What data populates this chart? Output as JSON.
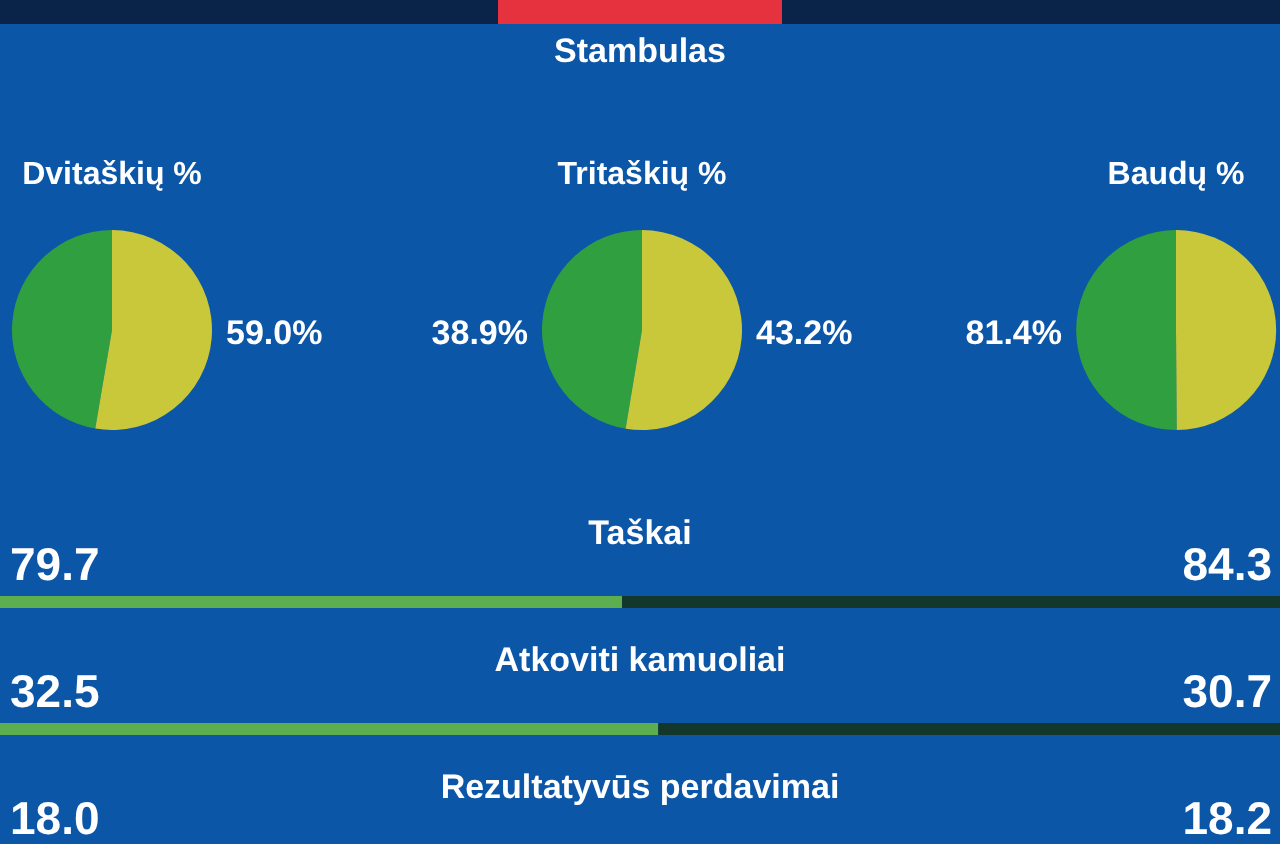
{
  "chart_data": [
    {
      "type": "other",
      "title": "Stambulas"
    },
    {
      "type": "pie",
      "title": "Dvitaškių %",
      "categories": [
        null,
        null
      ],
      "values": [
        53,
        59.0
      ],
      "colors": [
        "#2f9f3f",
        "#c8c83a"
      ],
      "value_labels": [
        null,
        "59.0%"
      ]
    },
    {
      "type": "pie",
      "title": "Tritaškių %",
      "categories": [
        null,
        null
      ],
      "values": [
        38.9,
        43.2
      ],
      "colors": [
        "#2f9f3f",
        "#c8c83a"
      ],
      "value_labels": [
        "38.9%",
        "43.2%"
      ]
    },
    {
      "type": "pie",
      "title": "Baudų %",
      "categories": [
        null,
        null
      ],
      "values": [
        81.4,
        81
      ],
      "colors": [
        "#2f9f3f",
        "#c8c83a"
      ],
      "value_labels": [
        "81.4%",
        null
      ]
    },
    {
      "type": "bar",
      "orientation": "horizontal",
      "stacked": true,
      "categories": [
        "Taškai"
      ],
      "series": [
        {
          "color": "#5cae4e",
          "values": [
            79.7
          ],
          "value_labels": [
            "79.7"
          ]
        },
        {
          "color": "#14372c",
          "values": [
            84.3
          ],
          "value_labels": [
            "84.3"
          ]
        }
      ]
    },
    {
      "type": "bar",
      "orientation": "horizontal",
      "stacked": true,
      "categories": [
        "Atkoviti kamuoliai"
      ],
      "series": [
        {
          "color": "#5cae4e",
          "values": [
            32.5
          ],
          "value_labels": [
            "32.5"
          ]
        },
        {
          "color": "#14372c",
          "values": [
            30.7
          ],
          "value_labels": [
            "30.7"
          ]
        }
      ]
    },
    {
      "type": "other",
      "title": "Rezultatyvūs perdavimai",
      "annotations": [
        "18.0",
        "18.2"
      ]
    }
  ]
}
